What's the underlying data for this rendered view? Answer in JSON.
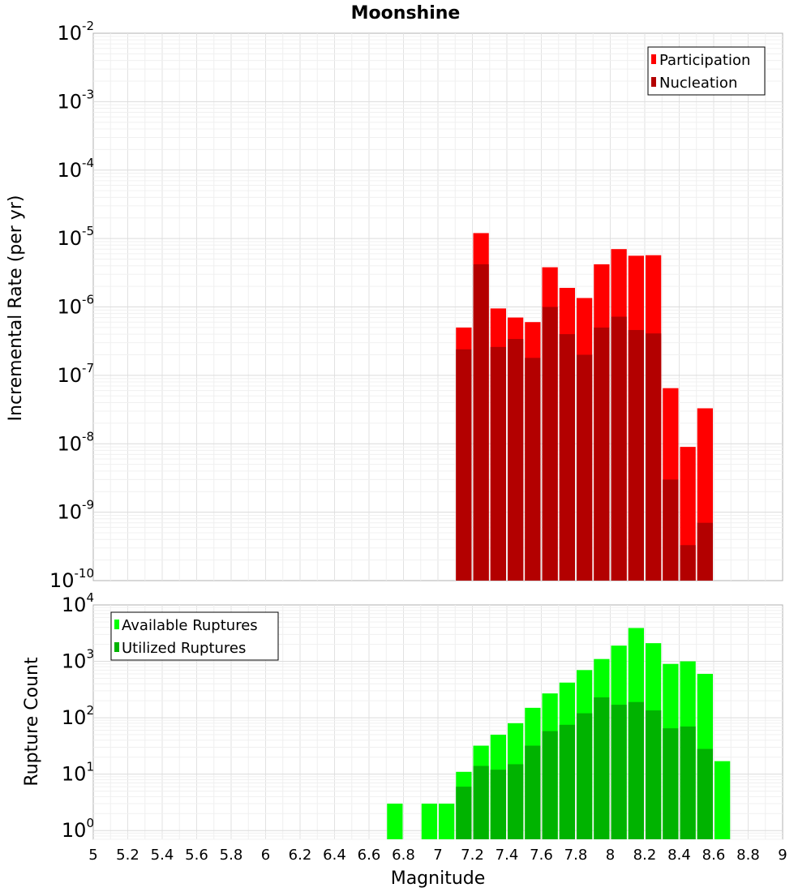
{
  "title": "Moonshine",
  "colors": {
    "participation": "#ff0000",
    "nucleation": "#b30000",
    "available": "#00ff00",
    "utilized": "#00b300"
  },
  "chart_data": [
    {
      "type": "bar",
      "ylabel": "Incremental Rate (per yr)",
      "yscale": "log",
      "ylim": [
        1e-10,
        0.01
      ],
      "xlim": [
        5,
        9
      ],
      "grid": true,
      "legend_position": "top-right",
      "y_ticks": [
        {
          "base": "10",
          "exp": "-2"
        },
        {
          "base": "10",
          "exp": "-3"
        },
        {
          "base": "10",
          "exp": "-4"
        },
        {
          "base": "10",
          "exp": "-5"
        },
        {
          "base": "10",
          "exp": "-6"
        },
        {
          "base": "10",
          "exp": "-7"
        },
        {
          "base": "10",
          "exp": "-8"
        },
        {
          "base": "10",
          "exp": "-9"
        },
        {
          "base": "10",
          "exp": "-10"
        }
      ],
      "x": [
        7.15,
        7.25,
        7.35,
        7.45,
        7.55,
        7.65,
        7.75,
        7.85,
        7.95,
        8.05,
        8.15,
        8.25,
        8.35,
        8.45,
        8.55
      ],
      "series": [
        {
          "name": "Participation",
          "values": [
            5e-07,
            1.2e-05,
            9.5e-07,
            7e-07,
            6e-07,
            3.8e-06,
            1.9e-06,
            1.35e-06,
            4.2e-06,
            7e-06,
            5.6e-06,
            5.7e-06,
            6.5e-08,
            9e-09,
            3.3e-08
          ]
        },
        {
          "name": "Nucleation",
          "values": [
            2.4e-07,
            4.2e-06,
            2.6e-07,
            3.4e-07,
            1.8e-07,
            1e-06,
            4e-07,
            2e-07,
            5e-07,
            7.2e-07,
            4.6e-07,
            4.1e-07,
            3e-09,
            3.3e-10,
            7e-10
          ]
        }
      ]
    },
    {
      "type": "bar",
      "xlabel": "Magnitude",
      "ylabel": "Rupture Count",
      "yscale": "log",
      "ylim": [
        0.7,
        10000
      ],
      "xlim": [
        5,
        9
      ],
      "grid": true,
      "legend_position": "top-left",
      "x_ticks": [
        "5",
        "5.2",
        "5.4",
        "5.6",
        "5.8",
        "6",
        "6.2",
        "6.4",
        "6.6",
        "6.8",
        "7",
        "7.2",
        "7.4",
        "7.6",
        "7.8",
        "8",
        "8.2",
        "8.4",
        "8.6",
        "8.8",
        "9"
      ],
      "y_ticks": [
        {
          "base": "10",
          "exp": "4"
        },
        {
          "base": "10",
          "exp": "3"
        },
        {
          "base": "10",
          "exp": "2"
        },
        {
          "base": "10",
          "exp": "1"
        },
        {
          "base": "10",
          "exp": "0"
        }
      ],
      "x": [
        6.75,
        6.95,
        7.05,
        7.15,
        7.25,
        7.35,
        7.45,
        7.55,
        7.65,
        7.75,
        7.85,
        7.95,
        8.05,
        8.15,
        8.25,
        8.35,
        8.45,
        8.55,
        8.65
      ],
      "series": [
        {
          "name": "Available Ruptures",
          "values": [
            3,
            3,
            3,
            11,
            32,
            50,
            80,
            150,
            270,
            420,
            700,
            1100,
            1900,
            3900,
            2100,
            900,
            1000,
            600,
            17
          ]
        },
        {
          "name": "Utilized Ruptures",
          "values": [
            0,
            0,
            0,
            6,
            14,
            12,
            15,
            32,
            58,
            75,
            120,
            230,
            170,
            190,
            135,
            65,
            70,
            28,
            0
          ]
        }
      ]
    }
  ]
}
